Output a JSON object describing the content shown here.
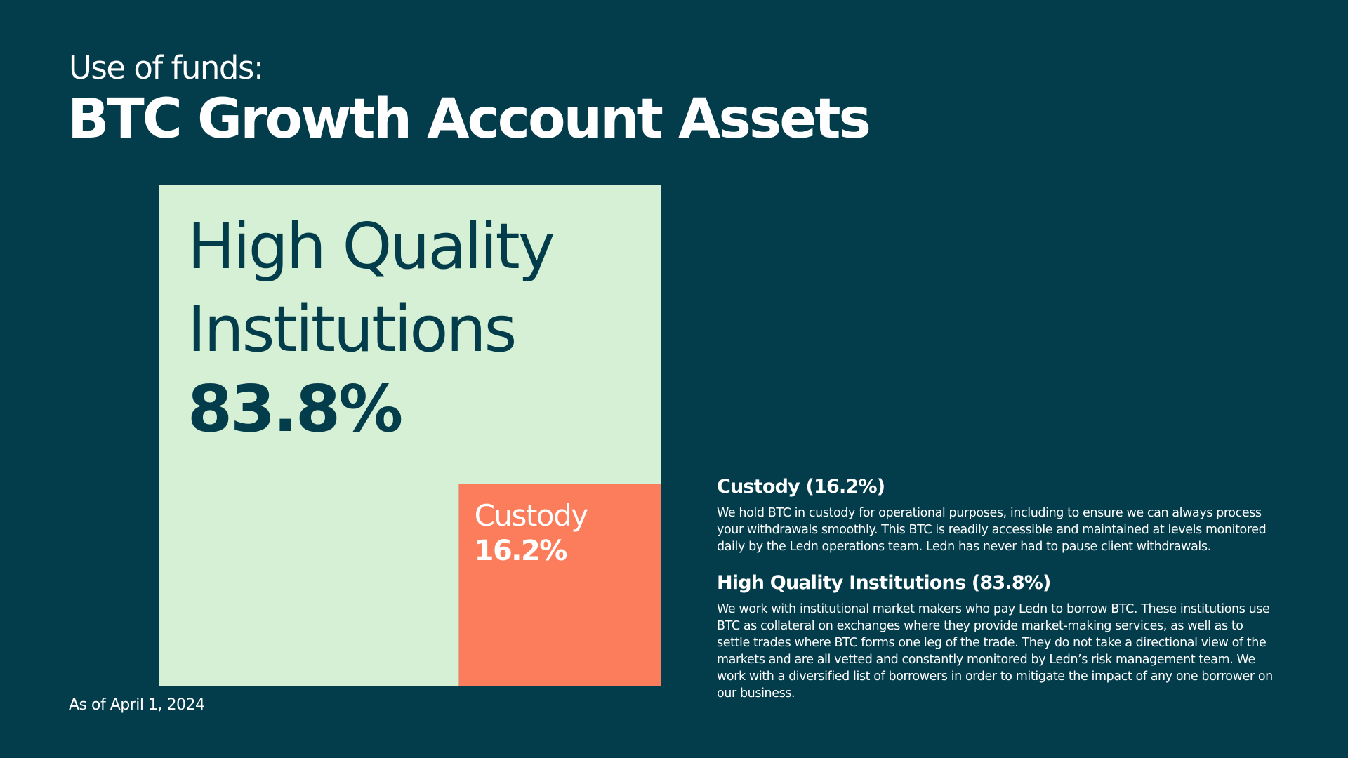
{
  "chart_data": {
    "type": "nested-square",
    "subtitle": "Use of funds:",
    "title": "BTC Growth Account Assets",
    "categories": [
      "High Quality Institutions",
      "Custody"
    ],
    "values": [
      83.8,
      16.2
    ],
    "value_labels": [
      "83.8%",
      "16.2%"
    ],
    "colors": [
      "#d5f0d4",
      "#fc7d5c"
    ],
    "note": "As of April 1, 2024"
  },
  "sections": [
    {
      "heading": "Custody (16.2%)",
      "body": "We hold BTC in custody for operational purposes, including to ensure we can always process your withdrawals smoothly. This BTC is readily accessible and maintained at levels monitored daily by the Ledn operations team. Ledn has never had to pause client withdrawals."
    },
    {
      "heading": "High Quality Institutions (83.8%)",
      "body": "We work with institutional market makers who pay Ledn to borrow BTC. These institutions use BTC as collateral on exchanges where they provide market-making services, as well as to settle trades where BTC forms one leg of the trade. They do not take a directional view of the markets and are all vetted and constantly monitored by Ledn’s risk management team. We work with a diversified list of borrowers in order to mitigate the impact of any one borrower on our business."
    }
  ]
}
